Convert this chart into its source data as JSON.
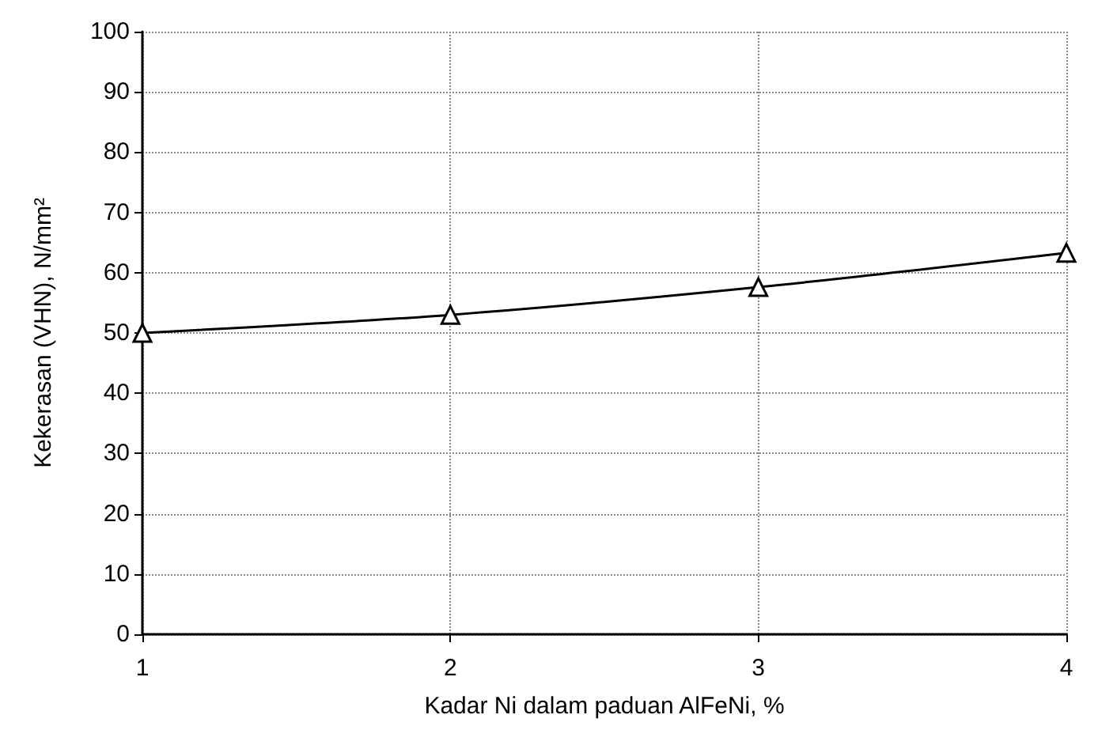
{
  "chart_data": {
    "type": "line",
    "xlabel": "Kadar Ni dalam paduan AlFeNi, %",
    "ylabel": "Kekerasan (VHN), N/mm²",
    "x": [
      1,
      2,
      3,
      4
    ],
    "series": [
      {
        "color": "#000000",
        "values": [
          50,
          53,
          57.6,
          63.3
        ]
      }
    ],
    "xlim": [
      1,
      4
    ],
    "xticks": [
      1,
      2,
      3,
      4
    ],
    "ylim": [
      0,
      100
    ],
    "yticks": [
      0,
      10,
      20,
      30,
      40,
      50,
      60,
      70,
      80,
      90,
      100
    ],
    "grid": true,
    "marker": "triangle",
    "line_style": "solid"
  }
}
